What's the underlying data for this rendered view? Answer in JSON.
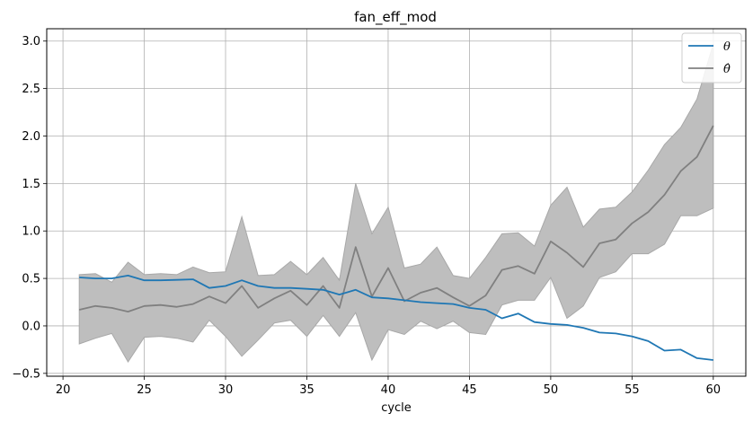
{
  "chart_data": {
    "type": "line",
    "title": "fan_eff_mod",
    "xlabel": "cycle",
    "ylabel": "",
    "xlim": [
      19,
      62
    ],
    "ylim": [
      -0.53,
      3.13
    ],
    "xticks": [
      20,
      25,
      30,
      35,
      40,
      45,
      50,
      55,
      60
    ],
    "yticks": [
      -0.5,
      0.0,
      0.5,
      1.0,
      1.5,
      2.0,
      2.5,
      3.0
    ],
    "xtick_labels": [
      "20",
      "25",
      "30",
      "35",
      "40",
      "45",
      "50",
      "55",
      "60"
    ],
    "ytick_labels": [
      "−0.5",
      "0.0",
      "0.5",
      "1.0",
      "1.5",
      "2.0",
      "2.5",
      "3.0"
    ],
    "grid": true,
    "legend_position": "top-right",
    "colors": {
      "theta": "#1f77b4",
      "theta_hat": "#808080",
      "band": "#bebebe",
      "grid": "#b0b0b0",
      "axes": "#000000"
    },
    "x": [
      21,
      22,
      23,
      24,
      25,
      26,
      27,
      28,
      29,
      30,
      31,
      32,
      33,
      34,
      35,
      36,
      37,
      38,
      39,
      40,
      41,
      42,
      43,
      44,
      45,
      46,
      47,
      48,
      49,
      50,
      51,
      52,
      53,
      54,
      55,
      56,
      57,
      58,
      59,
      60
    ],
    "series": [
      {
        "name": "θ",
        "values": [
          0.51,
          0.5,
          0.5,
          0.53,
          0.48,
          0.48,
          0.485,
          0.49,
          0.4,
          0.42,
          0.48,
          0.42,
          0.4,
          0.4,
          0.39,
          0.38,
          0.33,
          0.38,
          0.3,
          0.29,
          0.27,
          0.25,
          0.24,
          0.23,
          0.19,
          0.17,
          0.08,
          0.13,
          0.04,
          0.02,
          0.01,
          -0.02,
          -0.07,
          -0.08,
          -0.11,
          -0.16,
          -0.26,
          -0.25,
          -0.34,
          -0.36
        ]
      },
      {
        "name": "θ̂",
        "values": [
          0.17,
          0.21,
          0.19,
          0.15,
          0.21,
          0.22,
          0.2,
          0.23,
          0.31,
          0.24,
          0.42,
          0.19,
          0.29,
          0.37,
          0.22,
          0.42,
          0.19,
          0.83,
          0.31,
          0.61,
          0.26,
          0.35,
          0.4,
          0.3,
          0.21,
          0.32,
          0.59,
          0.63,
          0.55,
          0.89,
          0.77,
          0.62,
          0.87,
          0.91,
          1.08,
          1.2,
          1.38,
          1.63,
          1.78,
          2.11
        ],
        "band_upper": [
          0.54,
          0.55,
          0.46,
          0.67,
          0.54,
          0.55,
          0.54,
          0.62,
          0.56,
          0.57,
          1.15,
          0.53,
          0.54,
          0.68,
          0.54,
          0.72,
          0.48,
          1.5,
          0.97,
          1.25,
          0.61,
          0.65,
          0.83,
          0.53,
          0.5,
          0.72,
          0.97,
          0.98,
          0.84,
          1.27,
          1.46,
          1.04,
          1.23,
          1.25,
          1.41,
          1.64,
          1.91,
          2.09,
          2.39,
          2.97
        ],
        "band_lower": [
          -0.19,
          -0.13,
          -0.08,
          -0.38,
          -0.12,
          -0.11,
          -0.13,
          -0.17,
          0.06,
          -0.11,
          -0.32,
          -0.15,
          0.03,
          0.06,
          -0.11,
          0.11,
          -0.11,
          0.14,
          -0.36,
          -0.04,
          -0.09,
          0.05,
          -0.03,
          0.05,
          -0.07,
          -0.09,
          0.22,
          0.27,
          0.27,
          0.51,
          0.08,
          0.21,
          0.51,
          0.57,
          0.76,
          0.76,
          0.86,
          1.16,
          1.16,
          1.24
        ]
      }
    ]
  }
}
